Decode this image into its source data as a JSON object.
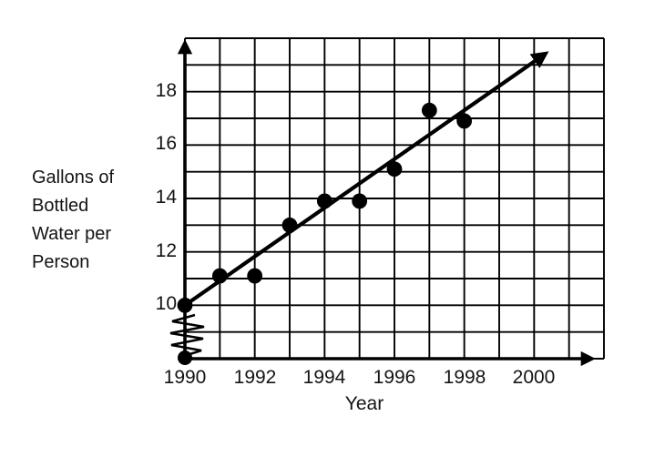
{
  "figure": {
    "xlabel": "Year",
    "ylabel_lines": [
      "Gallons of",
      "Bottled",
      "Water per",
      "Person"
    ]
  },
  "chart_data": {
    "type": "scatter",
    "title": "",
    "xlabel": "Year",
    "ylabel": "Gallons of Bottled Water per Person",
    "x_ticks": [
      1990,
      1992,
      1994,
      1996,
      1998,
      2000
    ],
    "y_ticks": [
      18,
      16,
      14,
      12,
      10
    ],
    "x_gridline_step_years": 1,
    "y_gridline_step_units": 1,
    "xlim": [
      1990,
      2002
    ],
    "ylim_visible": [
      10,
      20
    ],
    "y_axis_break_below": 10,
    "grid": true,
    "legend": false,
    "points": [
      {
        "year": 1990,
        "value": 10.0
      },
      {
        "year": 1991,
        "value": 11.1
      },
      {
        "year": 1992,
        "value": 11.1
      },
      {
        "year": 1993,
        "value": 13.0
      },
      {
        "year": 1994,
        "value": 13.9
      },
      {
        "year": 1995,
        "value": 13.9
      },
      {
        "year": 1996,
        "value": 15.1
      },
      {
        "year": 1997,
        "value": 17.3
      },
      {
        "year": 1998,
        "value": 16.9
      }
    ],
    "trend_line": {
      "from": {
        "year": 1990,
        "value": 10.0
      },
      "to": {
        "year": 2000.3,
        "value": 19.4
      }
    },
    "origin_dot": true,
    "colors": {
      "ink": "#000000",
      "background": "#ffffff",
      "text": "#141414"
    }
  }
}
